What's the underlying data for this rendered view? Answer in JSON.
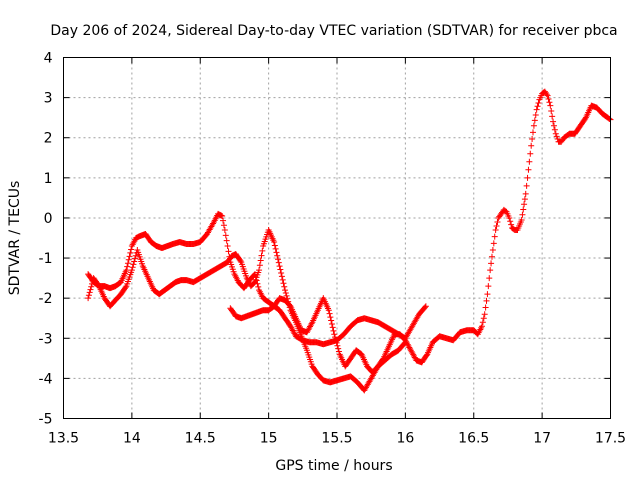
{
  "chart_data": {
    "type": "scatter",
    "title": "Day 206 of 2024, Sidereal Day-to-day VTEC variation (SDTVAR) for receiver pbca",
    "xlabel": "GPS time / hours",
    "ylabel": "SDTVAR / TECUs",
    "xlim": [
      13.5,
      17.5
    ],
    "ylim": [
      -5,
      4
    ],
    "xticks": [
      "13.5",
      "14",
      "14.5",
      "15",
      "15.5",
      "16",
      "16.5",
      "17",
      "17.5"
    ],
    "yticks": [
      "-5",
      "-4",
      "-3",
      "-2",
      "-1",
      "0",
      "1",
      "2",
      "3",
      "4"
    ],
    "grid": true,
    "marker": "plus",
    "color": "#ff0000",
    "series": [
      {
        "x": [
          13.68,
          13.72,
          13.76,
          13.8,
          13.84,
          13.88,
          13.92,
          13.96,
          14.0,
          14.03,
          14.06,
          14.1,
          14.14,
          14.18,
          14.22,
          14.26,
          14.3,
          14.35,
          14.4,
          14.45,
          14.5,
          14.55,
          14.6,
          14.63,
          14.66,
          14.68,
          14.7,
          14.72,
          14.75,
          14.78,
          14.82,
          14.86,
          14.9,
          14.93,
          14.96,
          15.0,
          15.04,
          15.08,
          15.12,
          15.16,
          15.2,
          15.25,
          15.3,
          15.35,
          15.4,
          15.45,
          15.5,
          15.55,
          15.6,
          15.65,
          15.7,
          15.75,
          15.8,
          15.85,
          15.9,
          15.95,
          16.0,
          16.05,
          16.1,
          16.15
        ],
        "y": [
          -1.4,
          -1.6,
          -1.7,
          -1.7,
          -1.75,
          -1.7,
          -1.6,
          -1.3,
          -0.7,
          -0.5,
          -0.45,
          -0.4,
          -0.6,
          -0.7,
          -0.75,
          -0.7,
          -0.65,
          -0.6,
          -0.65,
          -0.65,
          -0.6,
          -0.4,
          -0.1,
          0.1,
          0.05,
          -0.3,
          -0.7,
          -1.1,
          -1.4,
          -1.6,
          -1.75,
          -1.55,
          -1.4,
          -1.8,
          -2.0,
          -2.1,
          -2.2,
          -2.3,
          -2.5,
          -2.7,
          -2.95,
          -3.05,
          -3.1,
          -3.1,
          -3.15,
          -3.1,
          -3.05,
          -2.9,
          -2.7,
          -2.55,
          -2.5,
          -2.55,
          -2.6,
          -2.7,
          -2.8,
          -2.9,
          -3.0,
          -2.7,
          -2.4,
          -2.2
        ]
      },
      {
        "x": [
          13.68,
          13.72,
          13.76,
          13.8,
          13.84,
          13.88,
          13.92,
          13.96,
          14.0,
          14.04,
          14.08,
          14.12,
          14.16,
          14.2,
          14.24,
          14.28,
          14.32,
          14.36,
          14.4,
          14.45,
          14.5,
          14.55,
          14.6,
          14.65,
          14.7,
          14.73,
          14.76,
          14.8,
          14.84,
          14.87,
          14.9,
          14.93,
          14.96,
          15.0,
          15.04,
          15.08,
          15.12,
          15.16,
          15.2,
          15.24,
          15.28,
          15.32,
          15.36,
          15.4,
          15.45,
          15.5,
          15.55,
          15.6,
          15.65,
          15.7,
          15.75,
          15.8,
          15.85,
          15.9,
          15.95,
          16.0
        ],
        "y": [
          -2.0,
          -1.5,
          -1.7,
          -2.0,
          -2.2,
          -2.05,
          -1.9,
          -1.7,
          -1.3,
          -0.8,
          -1.2,
          -1.5,
          -1.8,
          -1.9,
          -1.8,
          -1.7,
          -1.6,
          -1.55,
          -1.55,
          -1.6,
          -1.5,
          -1.4,
          -1.3,
          -1.2,
          -1.1,
          -0.95,
          -0.9,
          -1.1,
          -1.5,
          -1.7,
          -1.6,
          -1.3,
          -0.7,
          -0.3,
          -0.6,
          -1.2,
          -1.8,
          -2.3,
          -2.6,
          -2.95,
          -3.3,
          -3.7,
          -3.9,
          -4.05,
          -4.1,
          -4.05,
          -4.0,
          -3.95,
          -4.1,
          -4.3,
          -4.0,
          -3.7,
          -3.55,
          -3.4,
          -3.3,
          -3.1
        ]
      },
      {
        "x": [
          14.72,
          14.76,
          14.8,
          14.84,
          14.88,
          14.92,
          14.96,
          15.0,
          15.04,
          15.08,
          15.12,
          15.16,
          15.2,
          15.24,
          15.28,
          15.32,
          15.36,
          15.4,
          15.44,
          15.48,
          15.52,
          15.56,
          15.6,
          15.64,
          15.68,
          15.72,
          15.76,
          15.8,
          15.84,
          15.88,
          15.92,
          15.96,
          16.0,
          16.04,
          16.08,
          16.12,
          16.16,
          16.2,
          16.25,
          16.3,
          16.35,
          16.4,
          16.45,
          16.5,
          16.53,
          16.56,
          16.58,
          16.6,
          16.62,
          16.64,
          16.66,
          16.68,
          16.7,
          16.72,
          16.74,
          16.76,
          16.78,
          16.8,
          16.82,
          16.85,
          16.88,
          16.9,
          16.92,
          16.94,
          16.96,
          16.98,
          17.0,
          17.02,
          17.04,
          17.06,
          17.08,
          17.1,
          17.12,
          17.14,
          17.16,
          17.18,
          17.2,
          17.24,
          17.28,
          17.32,
          17.36,
          17.4,
          17.44,
          17.48,
          17.5
        ],
        "y": [
          -2.25,
          -2.45,
          -2.5,
          -2.45,
          -2.4,
          -2.35,
          -2.3,
          -2.3,
          -2.2,
          -2.0,
          -2.05,
          -2.2,
          -2.5,
          -2.8,
          -2.85,
          -2.6,
          -2.3,
          -2.0,
          -2.3,
          -2.9,
          -3.4,
          -3.7,
          -3.5,
          -3.3,
          -3.4,
          -3.7,
          -3.85,
          -3.7,
          -3.5,
          -3.2,
          -2.9,
          -2.9,
          -3.05,
          -3.3,
          -3.55,
          -3.6,
          -3.4,
          -3.1,
          -2.95,
          -3.0,
          -3.05,
          -2.85,
          -2.8,
          -2.8,
          -2.9,
          -2.7,
          -2.4,
          -1.9,
          -1.3,
          -0.8,
          -0.3,
          0.0,
          0.1,
          0.2,
          0.15,
          0.0,
          -0.25,
          -0.3,
          -0.3,
          -0.05,
          0.6,
          1.2,
          1.8,
          2.3,
          2.7,
          2.95,
          3.1,
          3.15,
          3.05,
          2.8,
          2.4,
          2.1,
          1.9,
          1.9,
          2.0,
          2.05,
          2.1,
          2.1,
          2.3,
          2.5,
          2.8,
          2.75,
          2.6,
          2.5,
          2.45
        ]
      }
    ]
  }
}
